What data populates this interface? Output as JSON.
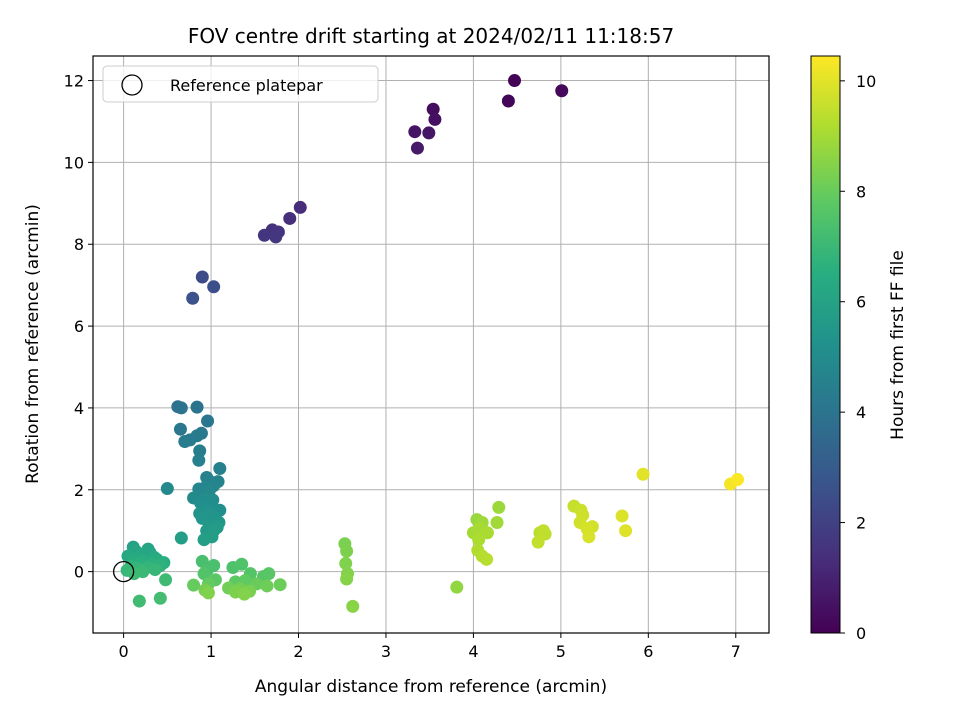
{
  "chart_data": {
    "type": "scatter",
    "title": "FOV centre drift starting at 2024/02/11 11:18:57",
    "xlabel": "Angular distance from reference (arcmin)",
    "ylabel": "Rotation from reference (arcmin)",
    "xlim": [
      -0.35,
      7.38
    ],
    "ylim": [
      -1.5,
      12.6
    ],
    "xticks": [
      0,
      1,
      2,
      3,
      4,
      5,
      6,
      7
    ],
    "yticks": [
      0,
      2,
      4,
      6,
      8,
      10,
      12
    ],
    "grid": true,
    "colormap": "viridis",
    "colorbar": {
      "label": "Hours from first FF file",
      "range": [
        0,
        10.45
      ],
      "ticks": [
        0,
        2,
        4,
        6,
        8,
        10
      ]
    },
    "legend": {
      "position": "top-left",
      "entries": [
        {
          "label": "Reference platepar",
          "marker": "open-circle"
        }
      ]
    },
    "reference_point": {
      "x": 0,
      "y": 0
    },
    "points": [
      {
        "x": 4.47,
        "y": 12.0,
        "h": 0.05
      },
      {
        "x": 4.4,
        "y": 11.5,
        "h": 0.15
      },
      {
        "x": 5.01,
        "y": 11.75,
        "h": 0.25
      },
      {
        "x": 3.54,
        "y": 11.3,
        "h": 0.35
      },
      {
        "x": 3.56,
        "y": 11.05,
        "h": 0.45
      },
      {
        "x": 3.33,
        "y": 10.75,
        "h": 0.55
      },
      {
        "x": 3.49,
        "y": 10.72,
        "h": 0.6
      },
      {
        "x": 3.36,
        "y": 10.35,
        "h": 0.7
      },
      {
        "x": 2.02,
        "y": 8.9,
        "h": 1.3
      },
      {
        "x": 1.9,
        "y": 8.63,
        "h": 1.4
      },
      {
        "x": 1.7,
        "y": 8.35,
        "h": 1.5
      },
      {
        "x": 1.77,
        "y": 8.3,
        "h": 1.55
      },
      {
        "x": 1.61,
        "y": 8.22,
        "h": 1.6
      },
      {
        "x": 1.74,
        "y": 8.18,
        "h": 1.65
      },
      {
        "x": 0.9,
        "y": 7.2,
        "h": 2.4
      },
      {
        "x": 1.03,
        "y": 6.96,
        "h": 2.5
      },
      {
        "x": 0.79,
        "y": 6.68,
        "h": 2.6
      },
      {
        "x": 0.62,
        "y": 4.03,
        "h": 3.9
      },
      {
        "x": 0.66,
        "y": 4.0,
        "h": 3.95
      },
      {
        "x": 0.84,
        "y": 4.02,
        "h": 4.0
      },
      {
        "x": 0.96,
        "y": 3.68,
        "h": 4.1
      },
      {
        "x": 0.65,
        "y": 3.48,
        "h": 4.15
      },
      {
        "x": 0.89,
        "y": 3.38,
        "h": 4.2
      },
      {
        "x": 0.84,
        "y": 3.32,
        "h": 4.25
      },
      {
        "x": 0.76,
        "y": 3.22,
        "h": 4.3
      },
      {
        "x": 0.7,
        "y": 3.18,
        "h": 4.35
      },
      {
        "x": 0.87,
        "y": 2.95,
        "h": 4.4
      },
      {
        "x": 0.86,
        "y": 2.72,
        "h": 4.45
      },
      {
        "x": 1.1,
        "y": 2.52,
        "h": 4.5
      },
      {
        "x": 0.95,
        "y": 2.3,
        "h": 4.55
      },
      {
        "x": 1.08,
        "y": 2.2,
        "h": 4.6
      },
      {
        "x": 0.99,
        "y": 2.2,
        "h": 4.65
      },
      {
        "x": 1.03,
        "y": 2.1,
        "h": 4.7
      },
      {
        "x": 0.93,
        "y": 2.05,
        "h": 4.75
      },
      {
        "x": 0.86,
        "y": 2.02,
        "h": 4.8
      },
      {
        "x": 0.98,
        "y": 1.98,
        "h": 4.85
      },
      {
        "x": 0.5,
        "y": 2.03,
        "h": 4.9
      },
      {
        "x": 0.8,
        "y": 1.8,
        "h": 4.95
      },
      {
        "x": 0.93,
        "y": 1.78,
        "h": 5.0
      },
      {
        "x": 1.02,
        "y": 1.75,
        "h": 5.05
      },
      {
        "x": 0.88,
        "y": 1.68,
        "h": 5.1
      },
      {
        "x": 0.97,
        "y": 1.6,
        "h": 5.15
      },
      {
        "x": 1.1,
        "y": 1.5,
        "h": 5.2
      },
      {
        "x": 0.94,
        "y": 1.48,
        "h": 5.25
      },
      {
        "x": 0.87,
        "y": 1.42,
        "h": 5.3
      },
      {
        "x": 1.0,
        "y": 1.38,
        "h": 5.35
      },
      {
        "x": 1.05,
        "y": 1.32,
        "h": 5.4
      },
      {
        "x": 0.9,
        "y": 1.3,
        "h": 5.45
      },
      {
        "x": 1.09,
        "y": 1.2,
        "h": 5.5
      },
      {
        "x": 0.98,
        "y": 1.12,
        "h": 5.55
      },
      {
        "x": 1.07,
        "y": 1.08,
        "h": 5.6
      },
      {
        "x": 0.95,
        "y": 1.0,
        "h": 5.65
      },
      {
        "x": 1.03,
        "y": 1.0,
        "h": 5.7
      },
      {
        "x": 1.01,
        "y": 0.85,
        "h": 5.75
      },
      {
        "x": 0.66,
        "y": 0.82,
        "h": 5.8
      },
      {
        "x": 0.92,
        "y": 0.78,
        "h": 5.85
      },
      {
        "x": 0.11,
        "y": 0.6,
        "h": 6.0
      },
      {
        "x": 0.28,
        "y": 0.55,
        "h": 6.05
      },
      {
        "x": 0.14,
        "y": 0.5,
        "h": 6.1
      },
      {
        "x": 0.3,
        "y": 0.47,
        "h": 6.15
      },
      {
        "x": 0.21,
        "y": 0.42,
        "h": 6.2
      },
      {
        "x": 0.05,
        "y": 0.38,
        "h": 6.25
      },
      {
        "x": 0.35,
        "y": 0.35,
        "h": 6.3
      },
      {
        "x": 0.17,
        "y": 0.32,
        "h": 6.35
      },
      {
        "x": 0.38,
        "y": 0.3,
        "h": 6.4
      },
      {
        "x": 0.24,
        "y": 0.25,
        "h": 6.45
      },
      {
        "x": 0.1,
        "y": 0.24,
        "h": 6.5
      },
      {
        "x": 0.46,
        "y": 0.22,
        "h": 6.55
      },
      {
        "x": 0.19,
        "y": 0.2,
        "h": 6.6
      },
      {
        "x": 0.33,
        "y": 0.18,
        "h": 6.65
      },
      {
        "x": 0.42,
        "y": 0.15,
        "h": 6.7
      },
      {
        "x": 0.08,
        "y": 0.12,
        "h": 6.75
      },
      {
        "x": 0.27,
        "y": 0.1,
        "h": 6.8
      },
      {
        "x": 0.15,
        "y": 0.08,
        "h": 6.85
      },
      {
        "x": 0.36,
        "y": 0.05,
        "h": 6.9
      },
      {
        "x": 0.04,
        "y": 0.03,
        "h": 6.95
      },
      {
        "x": 0.22,
        "y": 0.0,
        "h": 7.0
      },
      {
        "x": 0.12,
        "y": -0.05,
        "h": 7.05
      },
      {
        "x": 0.48,
        "y": -0.2,
        "h": 7.1
      },
      {
        "x": 0.18,
        "y": -0.72,
        "h": 7.15
      },
      {
        "x": 0.42,
        "y": -0.65,
        "h": 7.2
      },
      {
        "x": 0.9,
        "y": 0.25,
        "h": 7.3
      },
      {
        "x": 1.03,
        "y": 0.15,
        "h": 7.35
      },
      {
        "x": 0.96,
        "y": 0.05,
        "h": 7.4
      },
      {
        "x": 1.25,
        "y": 0.1,
        "h": 7.45
      },
      {
        "x": 1.35,
        "y": 0.18,
        "h": 7.5
      },
      {
        "x": 0.92,
        "y": -0.05,
        "h": 7.55
      },
      {
        "x": 1.45,
        "y": -0.05,
        "h": 7.6
      },
      {
        "x": 1.6,
        "y": -0.12,
        "h": 7.65
      },
      {
        "x": 1.66,
        "y": -0.05,
        "h": 7.7
      },
      {
        "x": 1.05,
        "y": -0.2,
        "h": 7.75
      },
      {
        "x": 1.28,
        "y": -0.25,
        "h": 7.8
      },
      {
        "x": 1.39,
        "y": -0.22,
        "h": 7.85
      },
      {
        "x": 0.97,
        "y": -0.3,
        "h": 7.9
      },
      {
        "x": 0.8,
        "y": -0.33,
        "h": 7.95
      },
      {
        "x": 1.52,
        "y": -0.3,
        "h": 8.0
      },
      {
        "x": 1.79,
        "y": -0.32,
        "h": 8.05
      },
      {
        "x": 1.64,
        "y": -0.35,
        "h": 8.1
      },
      {
        "x": 1.2,
        "y": -0.4,
        "h": 8.15
      },
      {
        "x": 1.33,
        "y": -0.42,
        "h": 8.2
      },
      {
        "x": 0.93,
        "y": -0.45,
        "h": 8.25
      },
      {
        "x": 1.44,
        "y": -0.48,
        "h": 8.3
      },
      {
        "x": 1.28,
        "y": -0.5,
        "h": 8.35
      },
      {
        "x": 0.97,
        "y": -0.52,
        "h": 8.4
      },
      {
        "x": 1.38,
        "y": -0.55,
        "h": 8.45
      },
      {
        "x": 2.53,
        "y": 0.68,
        "h": 8.3
      },
      {
        "x": 2.55,
        "y": 0.5,
        "h": 8.35
      },
      {
        "x": 2.54,
        "y": 0.2,
        "h": 8.4
      },
      {
        "x": 2.56,
        "y": -0.05,
        "h": 8.45
      },
      {
        "x": 2.55,
        "y": -0.18,
        "h": 8.5
      },
      {
        "x": 2.62,
        "y": -0.85,
        "h": 8.55
      },
      {
        "x": 3.81,
        "y": -0.38,
        "h": 8.7
      },
      {
        "x": 4.04,
        "y": 1.27,
        "h": 8.8
      },
      {
        "x": 4.29,
        "y": 1.57,
        "h": 8.85
      },
      {
        "x": 4.1,
        "y": 1.2,
        "h": 8.9
      },
      {
        "x": 4.27,
        "y": 1.2,
        "h": 8.95
      },
      {
        "x": 4.0,
        "y": 0.95,
        "h": 9.0
      },
      {
        "x": 4.07,
        "y": 1.05,
        "h": 9.05
      },
      {
        "x": 4.16,
        "y": 0.95,
        "h": 9.1
      },
      {
        "x": 4.06,
        "y": 0.78,
        "h": 9.15
      },
      {
        "x": 4.05,
        "y": 0.52,
        "h": 9.2
      },
      {
        "x": 4.1,
        "y": 0.38,
        "h": 9.25
      },
      {
        "x": 4.15,
        "y": 0.3,
        "h": 9.3
      },
      {
        "x": 4.76,
        "y": 0.95,
        "h": 9.35
      },
      {
        "x": 4.82,
        "y": 0.92,
        "h": 9.4
      },
      {
        "x": 4.8,
        "y": 1.0,
        "h": 9.45
      },
      {
        "x": 4.74,
        "y": 0.72,
        "h": 9.5
      },
      {
        "x": 5.15,
        "y": 1.6,
        "h": 9.55
      },
      {
        "x": 5.23,
        "y": 1.5,
        "h": 9.6
      },
      {
        "x": 5.25,
        "y": 1.38,
        "h": 9.65
      },
      {
        "x": 5.22,
        "y": 1.2,
        "h": 9.7
      },
      {
        "x": 5.36,
        "y": 1.1,
        "h": 9.75
      },
      {
        "x": 5.3,
        "y": 1.05,
        "h": 9.8
      },
      {
        "x": 5.32,
        "y": 0.85,
        "h": 9.85
      },
      {
        "x": 5.7,
        "y": 1.36,
        "h": 9.9
      },
      {
        "x": 5.74,
        "y": 1.0,
        "h": 9.95
      },
      {
        "x": 5.94,
        "y": 2.38,
        "h": 10.0
      },
      {
        "x": 6.94,
        "y": 2.14,
        "h": 10.3
      },
      {
        "x": 7.02,
        "y": 2.25,
        "h": 10.4
      }
    ]
  }
}
